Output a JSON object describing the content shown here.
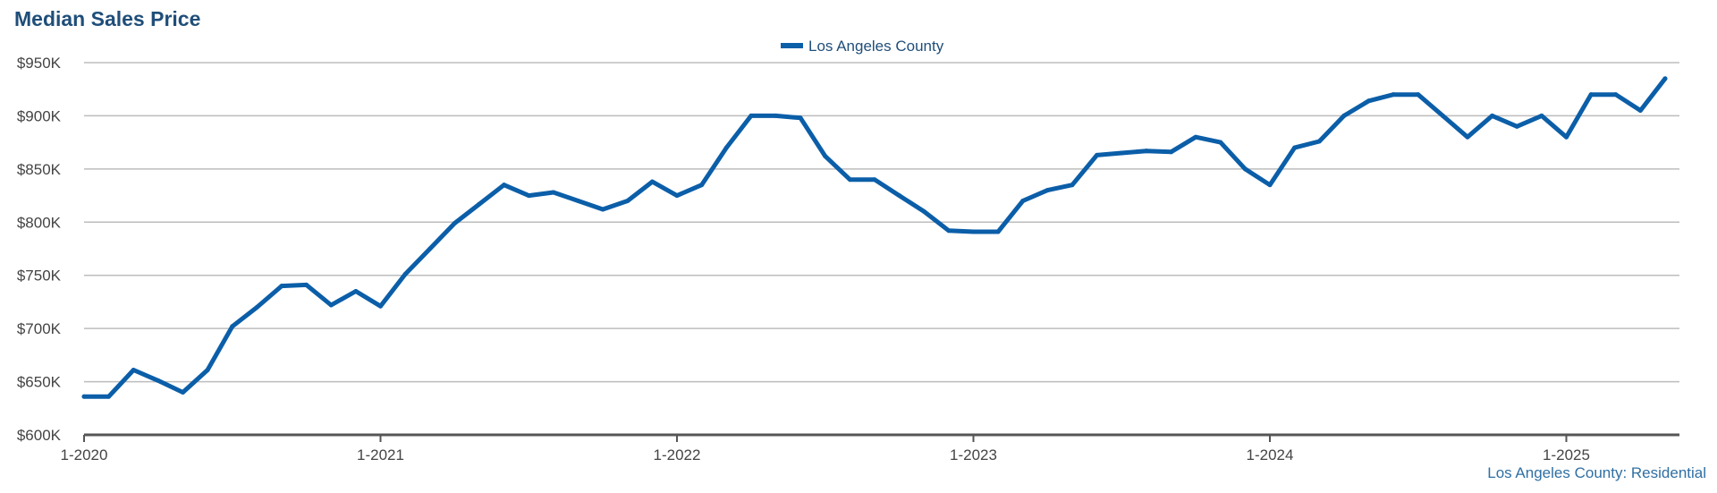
{
  "header": {
    "title": "Median Sales Price"
  },
  "footer": {
    "source_label": "Los Angeles County: Residential"
  },
  "colors": {
    "series": "#0b5ea8",
    "grid": "#bdbdbd",
    "axis": "#555555",
    "title": "#1f4e79"
  },
  "chart_data": {
    "type": "line",
    "title": "Median Sales Price",
    "xlabel": "",
    "ylabel": "",
    "ylim": [
      600,
      950
    ],
    "y_unit": "K",
    "y_ticks": [
      600,
      650,
      700,
      750,
      800,
      850,
      900,
      950
    ],
    "y_tick_labels": [
      "$600K",
      "$650K",
      "$700K",
      "$750K",
      "$800K",
      "$850K",
      "$900K",
      "$950K"
    ],
    "x_ticks": [
      "1-2020",
      "1-2021",
      "1-2022",
      "1-2023",
      "1-2024",
      "1-2025"
    ],
    "x_start": "1-2020",
    "x_end": "5-2025",
    "grid": true,
    "legend_position": "top-center",
    "series": [
      {
        "name": "Los Angeles County",
        "x": [
          "1-2020",
          "2-2020",
          "3-2020",
          "4-2020",
          "5-2020",
          "6-2020",
          "7-2020",
          "8-2020",
          "9-2020",
          "10-2020",
          "11-2020",
          "12-2020",
          "1-2021",
          "2-2021",
          "3-2021",
          "4-2021",
          "5-2021",
          "6-2021",
          "7-2021",
          "8-2021",
          "9-2021",
          "10-2021",
          "11-2021",
          "12-2021",
          "1-2022",
          "2-2022",
          "3-2022",
          "4-2022",
          "5-2022",
          "6-2022",
          "7-2022",
          "8-2022",
          "9-2022",
          "10-2022",
          "11-2022",
          "12-2022",
          "1-2023",
          "2-2023",
          "3-2023",
          "4-2023",
          "5-2023",
          "6-2023",
          "7-2023",
          "8-2023",
          "9-2023",
          "10-2023",
          "11-2023",
          "12-2023",
          "1-2024",
          "2-2024",
          "3-2024",
          "4-2024",
          "5-2024",
          "6-2024",
          "7-2024",
          "8-2024",
          "9-2024",
          "10-2024",
          "11-2024",
          "12-2024",
          "1-2025",
          "2-2025",
          "3-2025",
          "4-2025",
          "5-2025"
        ],
        "values": [
          636,
          636,
          661,
          651,
          640,
          661,
          702,
          720,
          740,
          741,
          722,
          735,
          721,
          751,
          775,
          799,
          817,
          835,
          825,
          828,
          820,
          812,
          820,
          838,
          825,
          835,
          870,
          900,
          900,
          898,
          862,
          840,
          840,
          825,
          810,
          792,
          791,
          791,
          820,
          830,
          835,
          863,
          865,
          867,
          866,
          880,
          875,
          850,
          835,
          870,
          876,
          900,
          914,
          920,
          920,
          900,
          880,
          900,
          890,
          900,
          880,
          920,
          920,
          905,
          935
        ]
      }
    ]
  }
}
